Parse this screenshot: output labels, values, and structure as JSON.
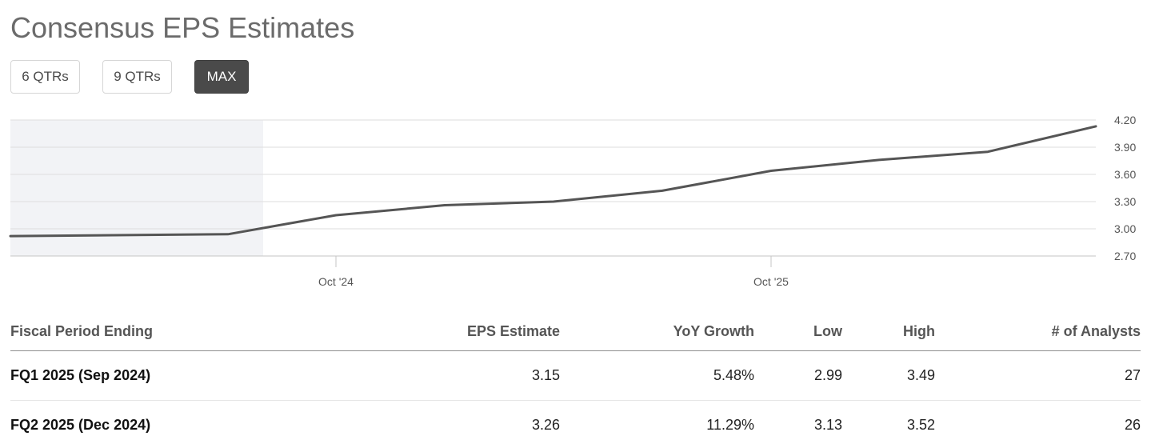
{
  "title": "Consensus EPS Estimates",
  "range_buttons": [
    {
      "label": "6 QTRs",
      "active": false
    },
    {
      "label": "9 QTRs",
      "active": false
    },
    {
      "label": "MAX",
      "active": true
    }
  ],
  "colors": {
    "line": "#555555",
    "history_shade": "#f2f3f6",
    "active_button": "#4a4a4a",
    "grid": "#dddddd"
  },
  "chart_data": {
    "type": "line",
    "title": "",
    "xlabel": "",
    "ylabel": "",
    "grid": true,
    "y_axis_side": "right",
    "y_ticks": [
      "4.20",
      "3.90",
      "3.60",
      "3.30",
      "3.00",
      "2.70"
    ],
    "ylim": [
      2.7,
      4.2
    ],
    "x_ticks": [
      "Oct '24",
      "Oct '25"
    ],
    "shaded_region": "historical quarters",
    "series": [
      {
        "x": [
          "Mar 2024",
          "Jun 2024",
          "Sep 2024",
          "Dec 2024",
          "Mar 2025",
          "Jun 2025",
          "Sep 2025",
          "Dec 2025",
          "Mar 2026",
          "Jun 2026"
        ],
        "values": [
          2.92,
          2.94,
          3.15,
          3.26,
          3.3,
          3.42,
          3.64,
          3.76,
          3.85,
          4.13
        ]
      }
    ]
  },
  "table": {
    "headers": [
      "Fiscal Period Ending",
      "EPS Estimate",
      "YoY Growth",
      "Low",
      "High",
      "# of Analysts"
    ],
    "rows": [
      [
        "FQ1 2025 (Sep 2024)",
        "3.15",
        "5.48%",
        "2.99",
        "3.49",
        "27"
      ],
      [
        "FQ2 2025 (Dec 2024)",
        "3.26",
        "11.29%",
        "3.13",
        "3.52",
        "26"
      ]
    ]
  }
}
